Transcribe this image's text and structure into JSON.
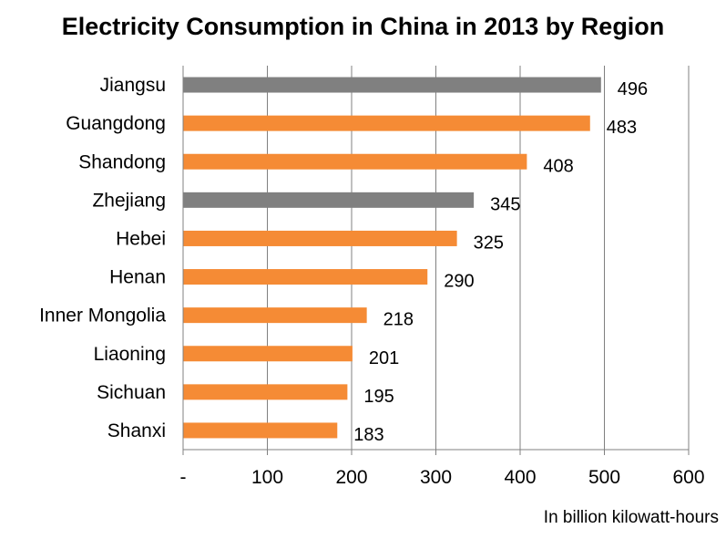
{
  "chart_data": {
    "type": "bar",
    "orientation": "horizontal",
    "title": "Electricity Consumption in China in 2013 by Region",
    "xlabel": "In billion  kilowatt-hours",
    "ylabel": "",
    "categories": [
      "Jiangsu",
      "Guangdong",
      "Shandong",
      "Zhejiang",
      "Hebei",
      "Henan",
      "Inner Mongolia",
      "Liaoning",
      "Sichuan",
      "Shanxi"
    ],
    "values": [
      496,
      483,
      408,
      345,
      325,
      290,
      218,
      201,
      195,
      183
    ],
    "value_labels": [
      "496",
      "483",
      "408",
      "345",
      "325",
      "290",
      "218",
      "201",
      "195",
      "183"
    ],
    "bar_colors": [
      "#808080",
      "#F58B35",
      "#F58B35",
      "#808080",
      "#F58B35",
      "#F58B35",
      "#F58B35",
      "#F58B35",
      "#F58B35",
      "#F58B35"
    ],
    "xlim": [
      0,
      600
    ],
    "x_ticks": [
      0,
      100,
      200,
      300,
      400,
      500,
      600
    ],
    "x_tick_labels": [
      "-",
      "100",
      "200",
      "300",
      "400",
      "500",
      "600"
    ],
    "grid": true,
    "legend": "none"
  },
  "colors": {
    "highlight": "#808080",
    "default": "#F58B35",
    "gridline": "#808080"
  }
}
